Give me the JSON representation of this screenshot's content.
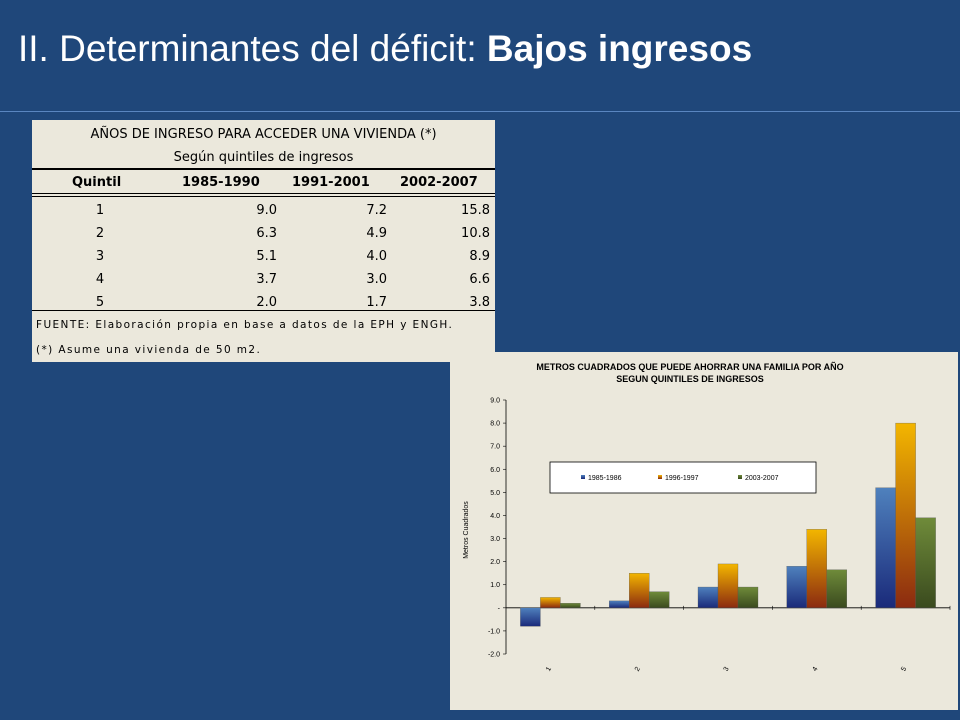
{
  "slide": {
    "title_regular": "II. Determinantes del déficit: ",
    "title_bold": "Bajos ingresos"
  },
  "table": {
    "title": "AÑOS DE INGRESO PARA ACCEDER UNA VIVIENDA (*)",
    "subtitle": "Según quintiles de ingresos",
    "headers": [
      "Quintil",
      "1985-1990",
      "1991-2001",
      "2002-2007"
    ],
    "rows": [
      [
        "1",
        "9.0",
        "7.2",
        "15.8"
      ],
      [
        "2",
        "6.3",
        "4.9",
        "10.8"
      ],
      [
        "3",
        "5.1",
        "4.0",
        "8.9"
      ],
      [
        "4",
        "3.7",
        "3.0",
        "6.6"
      ],
      [
        "5",
        "2.0",
        "1.7",
        "3.8"
      ]
    ],
    "source": "FUENTE: Elaboración propia en base a datos de la EPH y ENGH.",
    "footnote": "(*) Asume una vivienda de 50 m2."
  },
  "chart_data": {
    "type": "bar",
    "title_line1": "METROS CUADRADOS QUE PUEDE AHORRAR UNA FAMILIA POR AÑO",
    "title_line2": "SEGUN QUINTILES DE INGRESOS",
    "ylabel": "Metros Cuadrados",
    "xlabel": "",
    "categories": [
      "1",
      "2",
      "3",
      "4",
      "5"
    ],
    "series": [
      {
        "name": "1985-1986",
        "values": [
          -0.8,
          0.3,
          0.9,
          1.8,
          5.2
        ],
        "color": "#4f81bd"
      },
      {
        "name": "1996-1997",
        "values": [
          0.45,
          1.5,
          1.9,
          3.4,
          8.0
        ],
        "color": "#f3b600"
      },
      {
        "name": "2003-2007",
        "values": [
          0.2,
          0.7,
          0.9,
          1.65,
          3.9
        ],
        "color": "#6f8b3a"
      }
    ],
    "ylim": [
      -2.0,
      9.0
    ],
    "yticks": [
      "-2.0",
      "-1.0",
      "-",
      "1.0",
      "2.0",
      "3.0",
      "4.0",
      "5.0",
      "6.0",
      "7.0",
      "8.0",
      "9.0"
    ],
    "grid": false,
    "legend_position": "inside-top"
  }
}
